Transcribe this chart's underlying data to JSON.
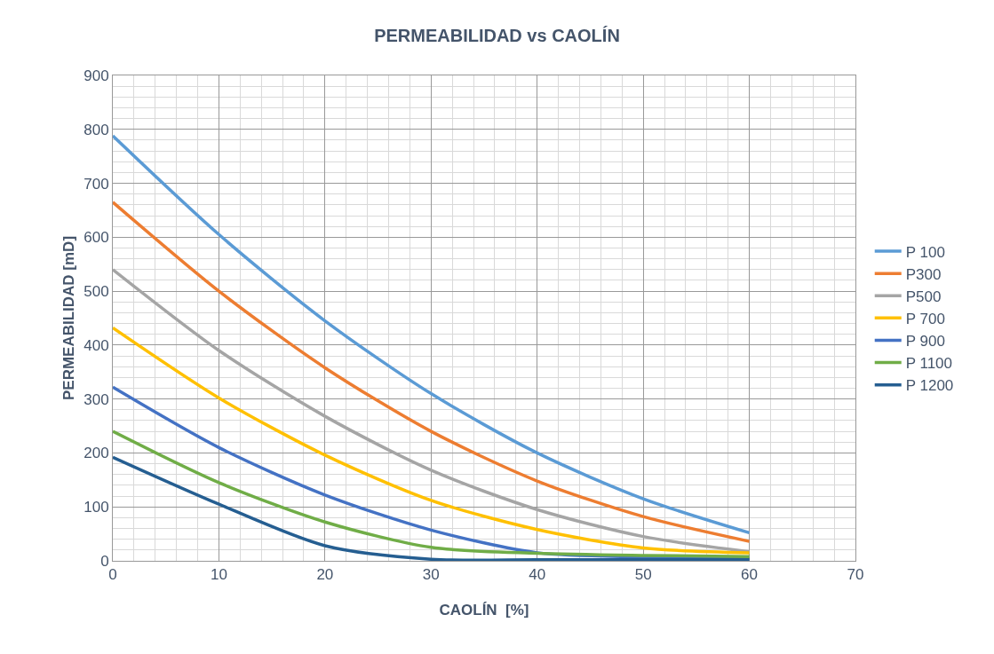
{
  "chart_data": {
    "type": "line",
    "title": "PERMEABILIDAD vs CAOLÍN",
    "xlabel": "CAOLÍN  [%]",
    "ylabel": "PERMEABILIDAD [mD]",
    "x": [
      0,
      10,
      20,
      30,
      40,
      50,
      60
    ],
    "series": [
      {
        "name": "P 100",
        "color": "#5b9bd5",
        "values": [
          788,
          605,
          445,
          310,
          200,
          115,
          52
        ]
      },
      {
        "name": "P300",
        "color": "#ed7d31",
        "values": [
          665,
          500,
          358,
          240,
          148,
          82,
          36
        ]
      },
      {
        "name": "P500",
        "color": "#a5a5a5",
        "values": [
          540,
          390,
          268,
          168,
          95,
          45,
          17
        ]
      },
      {
        "name": "P 700",
        "color": "#ffc000",
        "values": [
          432,
          302,
          196,
          112,
          58,
          24,
          15
        ]
      },
      {
        "name": "P 900",
        "color": "#4472c4",
        "values": [
          322,
          210,
          122,
          57,
          15,
          7,
          4
        ]
      },
      {
        "name": "P 1100",
        "color": "#70ad47",
        "values": [
          240,
          145,
          72,
          25,
          14,
          10,
          8
        ]
      },
      {
        "name": "P 1200",
        "color": "#255e91",
        "values": [
          192,
          105,
          28,
          3,
          2,
          2,
          2
        ]
      }
    ],
    "xlim": [
      0,
      70
    ],
    "xticks": [
      0,
      10,
      20,
      30,
      40,
      50,
      60,
      70
    ],
    "ylim": [
      0,
      900
    ],
    "yticks": [
      0,
      100,
      200,
      300,
      400,
      500,
      600,
      700,
      800,
      900
    ],
    "grid": true,
    "legend": "right",
    "marker": "none",
    "line_style": "solid"
  }
}
